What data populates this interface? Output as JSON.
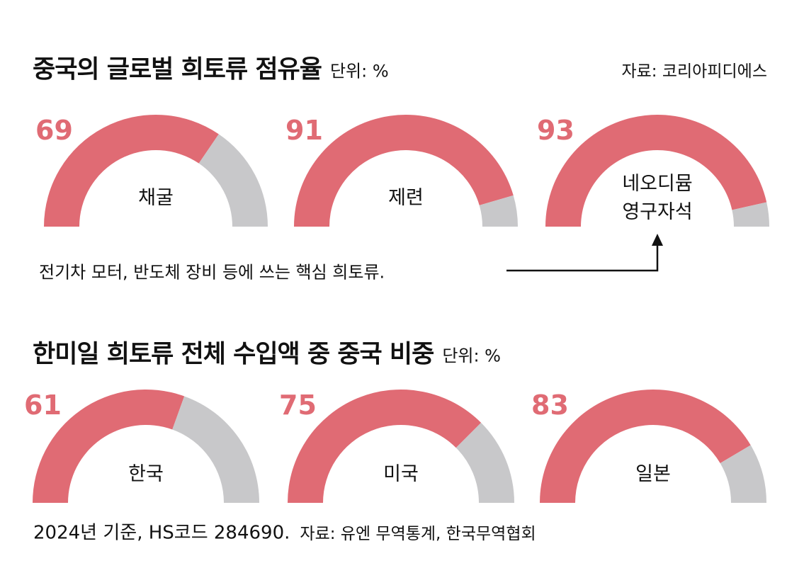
{
  "chart_data": [
    {
      "type": "gauge",
      "title": "중국의 글로벌 희토류 점유율",
      "unit": "단위: %",
      "source": "자료: 코리아피디에스",
      "categories": [
        "채굴",
        "제련",
        "네오디뮴 영구자석"
      ],
      "values": [
        69,
        91,
        93
      ],
      "ylim": [
        0,
        100
      ],
      "color": "#e06b74",
      "rest_color": "#c8c8ca",
      "annotation": "전기차 모터, 반도체 장비 등에 쓰는 핵심 희토류."
    },
    {
      "type": "gauge",
      "title": "한미일 희토류 전체 수입액 중 중국 비중",
      "unit": "단위: %",
      "categories": [
        "한국",
        "미국",
        "일본"
      ],
      "values": [
        61,
        75,
        83
      ],
      "ylim": [
        0,
        100
      ],
      "color": "#e06b74",
      "rest_color": "#c8c8ca",
      "note": "2024년 기준, HS코드 284690.",
      "source": "자료: 유엔 무역통계, 한국무역협회"
    }
  ]
}
